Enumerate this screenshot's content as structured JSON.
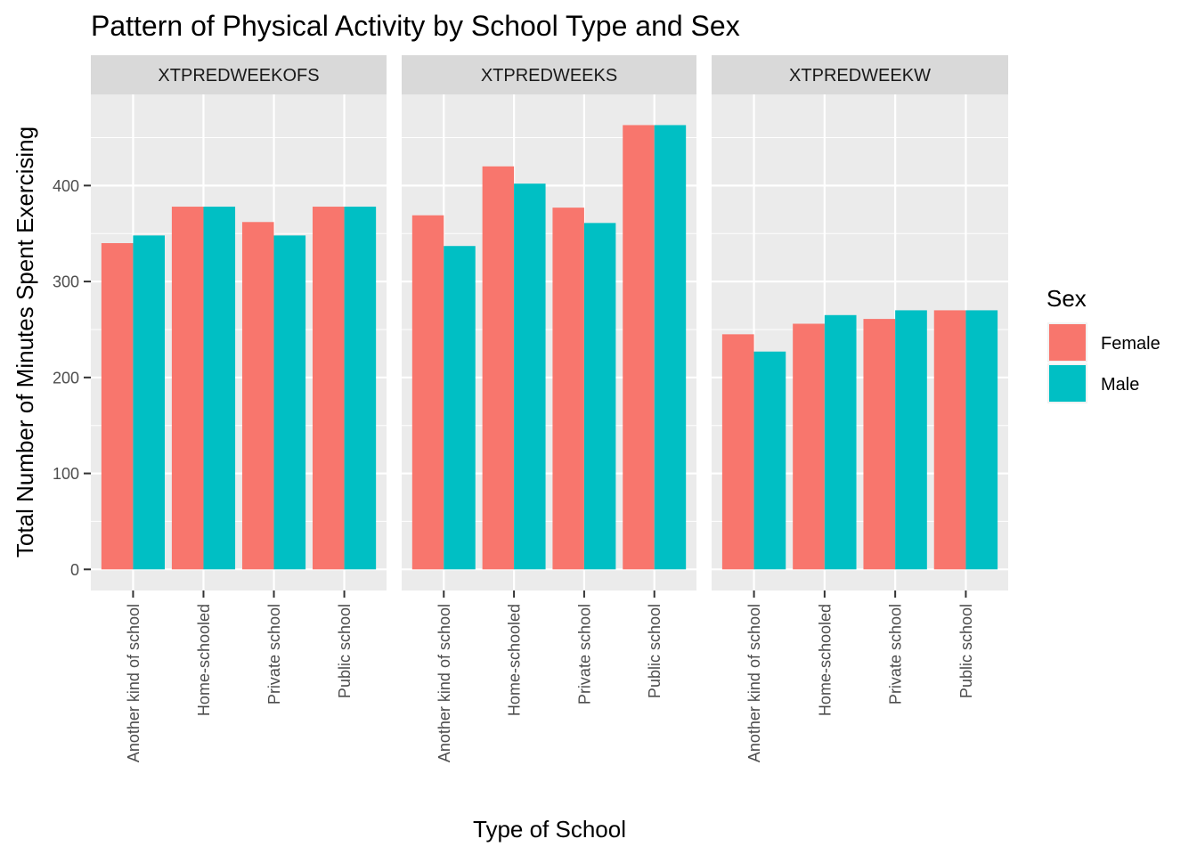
{
  "chart_data": {
    "type": "bar",
    "title": "Pattern of Physical Activity by School Type and Sex",
    "xlabel": "Type of School",
    "ylabel": "Total Number of Minutes Spent Exercising",
    "ylim": [
      -22,
      495
    ],
    "yticks": [
      0,
      100,
      200,
      300,
      400
    ],
    "yticks_minor": [
      50,
      150,
      250,
      350,
      450
    ],
    "categories": [
      "Another kind of school",
      "Home-schooled",
      "Private school",
      "Public school"
    ],
    "legend": {
      "title": "Sex",
      "position": "right"
    },
    "colors": {
      "Female": "#F8766D",
      "Male": "#00BFC4"
    },
    "panel_background": "#EBEBEB",
    "strip_background": "#D9D9D9",
    "grid": true,
    "facets": [
      {
        "label": "XTPREDWEEKOFS",
        "series": [
          {
            "name": "Female",
            "values": [
              340,
              378,
              362,
              378
            ]
          },
          {
            "name": "Male",
            "values": [
              348,
              378,
              348,
              378
            ]
          }
        ]
      },
      {
        "label": "XTPREDWEEKS",
        "series": [
          {
            "name": "Female",
            "values": [
              369,
              420,
              377,
              463
            ]
          },
          {
            "name": "Male",
            "values": [
              337,
              402,
              361,
              463
            ]
          }
        ]
      },
      {
        "label": "XTPREDWEEKW",
        "series": [
          {
            "name": "Female",
            "values": [
              245,
              256,
              261,
              270
            ]
          },
          {
            "name": "Male",
            "values": [
              227,
              265,
              270,
              270
            ]
          }
        ]
      }
    ]
  }
}
